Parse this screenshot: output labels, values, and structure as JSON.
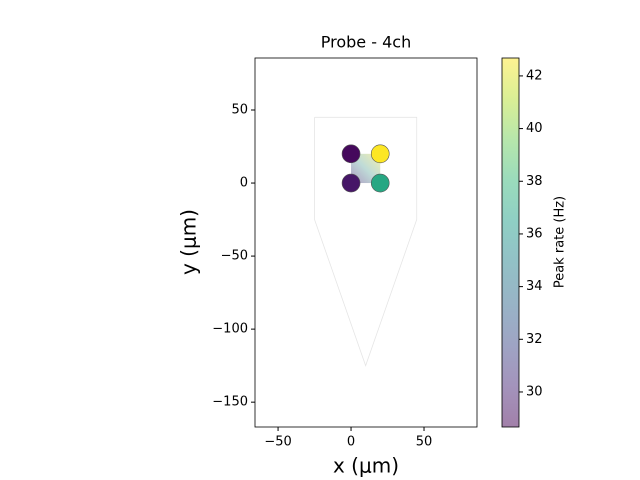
{
  "chart_data": {
    "type": "scatter",
    "title": "Probe - 4ch",
    "x_label": "x (μm)",
    "y_label": "y (μm)",
    "colorbar_label": "Peak rate (Hz)",
    "colormap": "viridis",
    "x": [
      0,
      20,
      0,
      20
    ],
    "y": [
      20,
      20,
      0,
      0
    ],
    "values": [
      29.0,
      42.7,
      29.5,
      37.0
    ],
    "probe_contour": {
      "x": [
        -25,
        45,
        45,
        10,
        -25,
        -25
      ],
      "y": [
        45,
        45,
        -25,
        -125,
        -25,
        45
      ]
    },
    "xlim": [
      -65.8,
      86.3
    ],
    "ylim": [
      -167,
      85.6
    ],
    "xticks": [
      {
        "value": -50,
        "label": "−50"
      },
      0,
      50
    ],
    "yticks": [
      {
        "value": -150,
        "label": "−150"
      },
      {
        "value": -100,
        "label": "−100"
      },
      {
        "value": -50,
        "label": "−50"
      },
      0,
      50
    ],
    "clim": [
      28.67,
      42.68
    ],
    "cticks": [
      30,
      32,
      34,
      36,
      38,
      40,
      42
    ]
  }
}
